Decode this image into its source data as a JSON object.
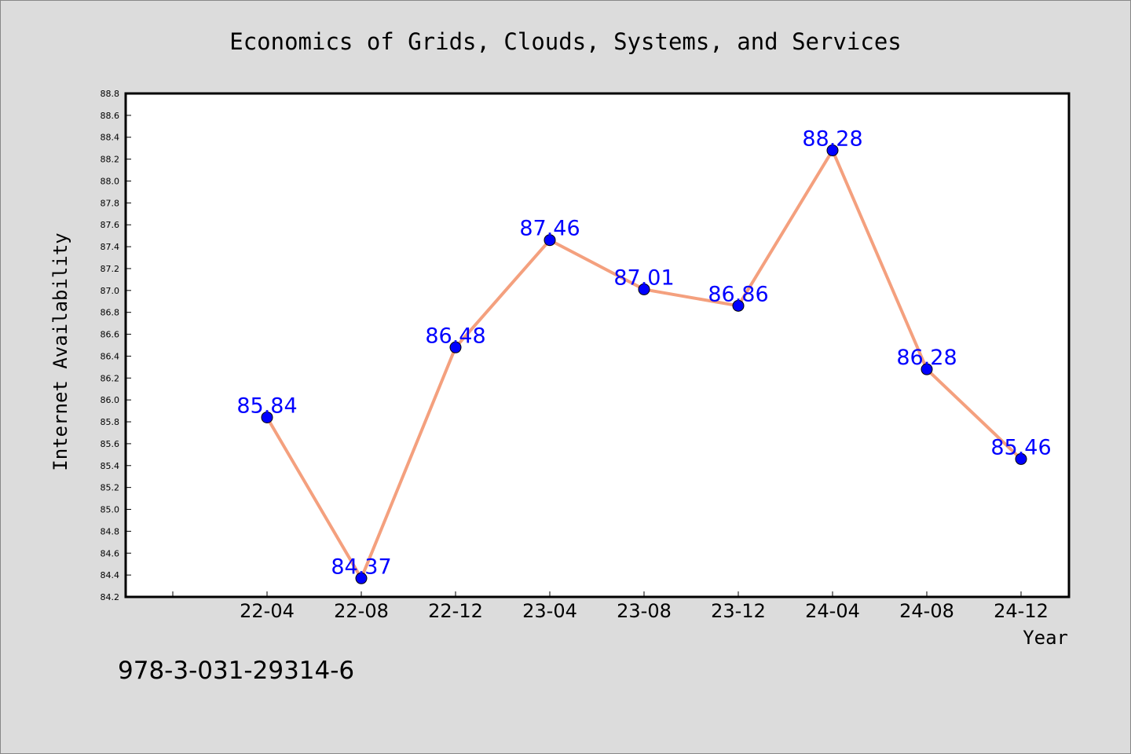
{
  "chart_data": {
    "type": "line",
    "title": "Economics of Grids, Clouds, Systems, and Services",
    "xlabel": "Year",
    "ylabel": "Internet Availability",
    "categories": [
      "22-04",
      "22-08",
      "22-12",
      "23-04",
      "23-08",
      "23-12",
      "24-04",
      "24-08",
      "24-12"
    ],
    "series": [
      {
        "values": [
          85.84,
          84.37,
          86.48,
          87.46,
          87.01,
          86.86,
          88.28,
          86.28,
          85.46
        ]
      }
    ],
    "ylim": [
      84.2,
      88.8
    ],
    "ytick_step": 0.2,
    "grid": false,
    "line_color": "#f4a07e",
    "marker_color": "#0000ff",
    "label_color": "#0000ff"
  },
  "footer": {
    "isbn": "978-3-031-29314-6"
  }
}
